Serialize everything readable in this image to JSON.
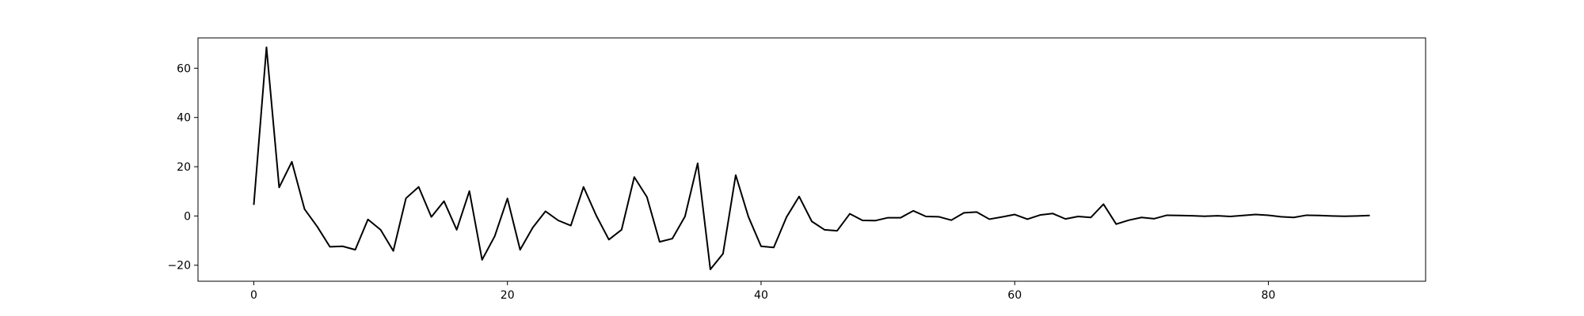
{
  "chart_data": {
    "type": "line",
    "title": "",
    "xlabel": "",
    "ylabel": "",
    "xlim": [
      -4.4,
      92.4
    ],
    "ylim": [
      -26.5,
      72.3
    ],
    "grid": false,
    "line_color": "#000000",
    "x_ticks": [
      0,
      20,
      40,
      60,
      80
    ],
    "x_tick_labels": [
      "0",
      "20",
      "40",
      "60",
      "80"
    ],
    "y_ticks": [
      -20,
      0,
      20,
      40,
      60
    ],
    "y_tick_labels": [
      "−20",
      "0",
      "20",
      "40",
      "60"
    ],
    "series": [
      {
        "name": "",
        "x": [
          0,
          1,
          2,
          3,
          4,
          5,
          6,
          7,
          8,
          9,
          10,
          11,
          12,
          13,
          14,
          15,
          16,
          17,
          18,
          19,
          20,
          21,
          22,
          23,
          24,
          25,
          26,
          27,
          28,
          29,
          30,
          31,
          32,
          33,
          34,
          35,
          36,
          37,
          38,
          39,
          40,
          41,
          42,
          43,
          44,
          45,
          46,
          47,
          48,
          49,
          50,
          51,
          52,
          53,
          54,
          55,
          56,
          57,
          58,
          59,
          60,
          61,
          62,
          63,
          64,
          65,
          66,
          67,
          68,
          69,
          70,
          71,
          72,
          73,
          74,
          75,
          76,
          77,
          78,
          79,
          80,
          81,
          82,
          83,
          84,
          85,
          86,
          87,
          88
        ],
        "values": [
          4.5,
          68.5,
          11.6,
          22,
          2.8,
          -4.3,
          -12.5,
          -12.3,
          -13.7,
          -1.4,
          -5.6,
          -14.2,
          7.2,
          11.8,
          -0.4,
          6,
          -5.6,
          10.1,
          -17.8,
          -8.2,
          7.1,
          -13.7,
          -4.7,
          1.9,
          -1.8,
          -3.9,
          11.8,
          0.2,
          -9.6,
          -5.6,
          15.8,
          7.7,
          -10.5,
          -9.2,
          -0.2,
          21.4,
          -21.7,
          -15.3,
          16.6,
          -0.3,
          -12.3,
          -12.8,
          -0.5,
          7.9,
          -2.2,
          -5.6,
          -6,
          0.9,
          -1.8,
          -1.9,
          -0.7,
          -0.7,
          2.1,
          -0.2,
          -0.3,
          -1.7,
          1.3,
          1.6,
          -1.3,
          -0.4,
          0.6,
          -1.3,
          0.4,
          1,
          -1.2,
          -0.2,
          -0.6,
          4.8,
          -3.3,
          -1.7,
          -0.6,
          -1.1,
          0.3,
          0.2,
          0.1,
          -0.1,
          0.1,
          -0.2,
          0.2,
          0.6,
          0.3,
          -0.3,
          -0.6,
          0.3,
          0.2,
          0,
          -0.1,
          0,
          0.2
        ]
      }
    ]
  }
}
